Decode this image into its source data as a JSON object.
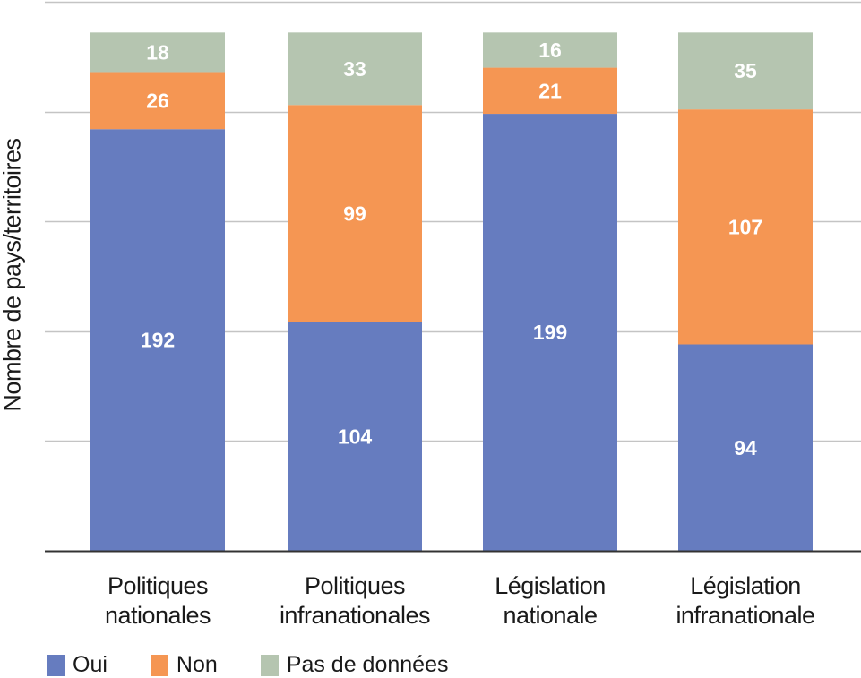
{
  "chart_data": {
    "type": "bar",
    "stacked": true,
    "title": "",
    "xlabel": "",
    "ylabel": "Nombre de pays/territoires",
    "ylim": [
      0,
      250
    ],
    "ytick_step": 50,
    "ytick_labels_shown": false,
    "grid": true,
    "legend_position": "bottom-left",
    "categories": [
      [
        "Politiques",
        "nationales"
      ],
      [
        "Politiques",
        "infranationales"
      ],
      [
        "Législation",
        "nationale"
      ],
      [
        "Législation",
        "infranationale"
      ]
    ],
    "series": [
      {
        "name": "Oui",
        "color": "#667cbf",
        "values": [
          192,
          104,
          199,
          94
        ]
      },
      {
        "name": "Non",
        "color": "#f59653",
        "values": [
          26,
          99,
          21,
          107
        ]
      },
      {
        "name": "Pas de données",
        "color": "#b5c5b0",
        "values": [
          18,
          33,
          16,
          35
        ]
      }
    ],
    "data_label_color": "#ffffff"
  }
}
